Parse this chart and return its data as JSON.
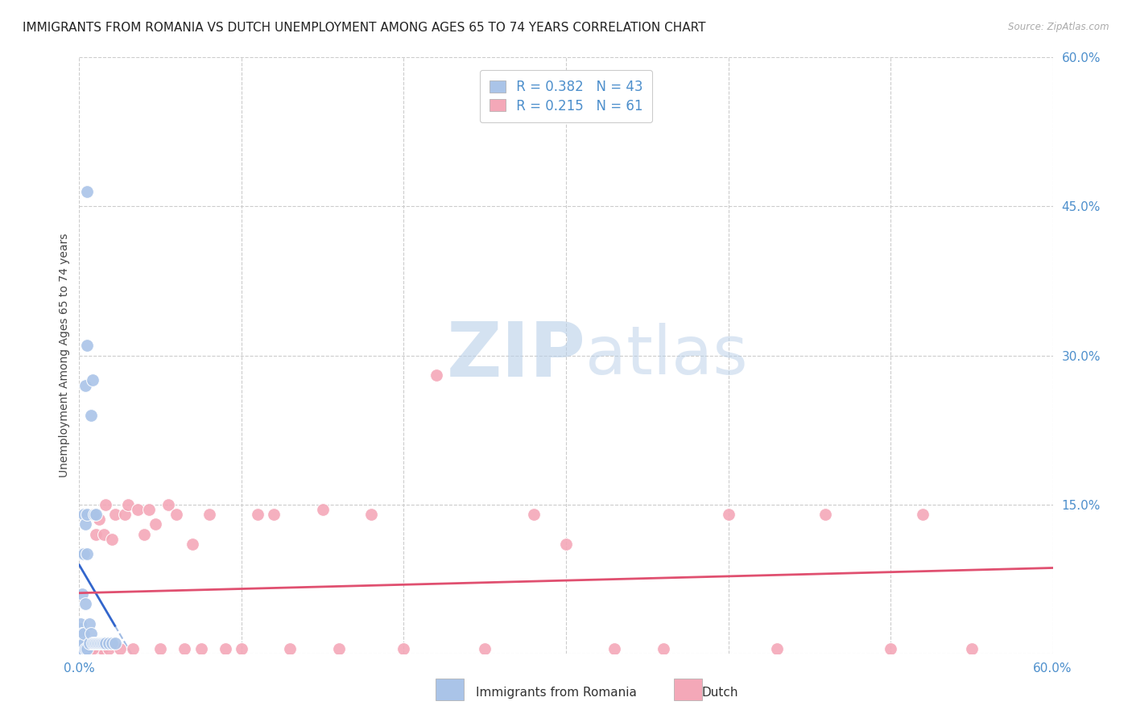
{
  "title": "IMMIGRANTS FROM ROMANIA VS DUTCH UNEMPLOYMENT AMONG AGES 65 TO 74 YEARS CORRELATION CHART",
  "source": "Source: ZipAtlas.com",
  "ylabel": "Unemployment Among Ages 65 to 74 years",
  "xlim": [
    0.0,
    0.6
  ],
  "ylim": [
    0.0,
    0.6
  ],
  "grid_color": "#cccccc",
  "background_color": "#ffffff",
  "romania_color": "#aac4e8",
  "dutch_color": "#f4a8b8",
  "romania_R": 0.382,
  "romania_N": 43,
  "dutch_R": 0.215,
  "dutch_N": 61,
  "title_fontsize": 11,
  "axis_label_fontsize": 10,
  "tick_fontsize": 11,
  "watermark_zip": "ZIP",
  "watermark_atlas": "atlas",
  "watermark_color": "#c5d8ee",
  "axis_color": "#4d8fcc",
  "trend_blue_solid": "#3366cc",
  "trend_blue_dash": "#88aadd",
  "trend_pink": "#e05070",
  "romania_x": [
    0.001,
    0.001,
    0.001,
    0.001,
    0.001,
    0.001,
    0.002,
    0.002,
    0.002,
    0.002,
    0.002,
    0.003,
    0.003,
    0.003,
    0.003,
    0.004,
    0.004,
    0.004,
    0.004,
    0.005,
    0.005,
    0.005,
    0.005,
    0.005,
    0.006,
    0.006,
    0.007,
    0.007,
    0.008,
    0.008,
    0.009,
    0.009,
    0.01,
    0.01,
    0.011,
    0.012,
    0.013,
    0.014,
    0.015,
    0.016,
    0.018,
    0.02,
    0.022
  ],
  "romania_y": [
    0.005,
    0.01,
    0.015,
    0.02,
    0.025,
    0.03,
    0.005,
    0.01,
    0.02,
    0.06,
    0.1,
    0.01,
    0.02,
    0.1,
    0.14,
    0.005,
    0.05,
    0.13,
    0.27,
    0.005,
    0.1,
    0.14,
    0.31,
    0.465,
    0.01,
    0.03,
    0.02,
    0.24,
    0.01,
    0.275,
    0.01,
    0.14,
    0.01,
    0.14,
    0.01,
    0.01,
    0.01,
    0.01,
    0.01,
    0.01,
    0.01,
    0.01,
    0.01
  ],
  "dutch_x": [
    0.002,
    0.003,
    0.004,
    0.005,
    0.005,
    0.006,
    0.007,
    0.008,
    0.008,
    0.009,
    0.01,
    0.01,
    0.012,
    0.012,
    0.014,
    0.015,
    0.016,
    0.018,
    0.02,
    0.022,
    0.025,
    0.028,
    0.03,
    0.033,
    0.036,
    0.04,
    0.043,
    0.047,
    0.05,
    0.055,
    0.06,
    0.065,
    0.07,
    0.075,
    0.08,
    0.09,
    0.1,
    0.11,
    0.12,
    0.13,
    0.15,
    0.16,
    0.18,
    0.2,
    0.22,
    0.25,
    0.28,
    0.3,
    0.33,
    0.36,
    0.4,
    0.43,
    0.46,
    0.5,
    0.52,
    0.55,
    0.003,
    0.005,
    0.006,
    0.007,
    0.008
  ],
  "dutch_y": [
    0.005,
    0.005,
    0.01,
    0.005,
    0.01,
    0.005,
    0.005,
    0.01,
    0.14,
    0.005,
    0.01,
    0.12,
    0.005,
    0.135,
    0.005,
    0.12,
    0.15,
    0.005,
    0.115,
    0.14,
    0.005,
    0.14,
    0.15,
    0.005,
    0.145,
    0.12,
    0.145,
    0.13,
    0.005,
    0.15,
    0.14,
    0.005,
    0.11,
    0.005,
    0.14,
    0.005,
    0.005,
    0.14,
    0.14,
    0.005,
    0.145,
    0.005,
    0.14,
    0.005,
    0.28,
    0.005,
    0.14,
    0.11,
    0.005,
    0.005,
    0.14,
    0.005,
    0.14,
    0.005,
    0.14,
    0.005,
    0.005,
    0.005,
    0.005,
    0.005,
    0.005
  ]
}
